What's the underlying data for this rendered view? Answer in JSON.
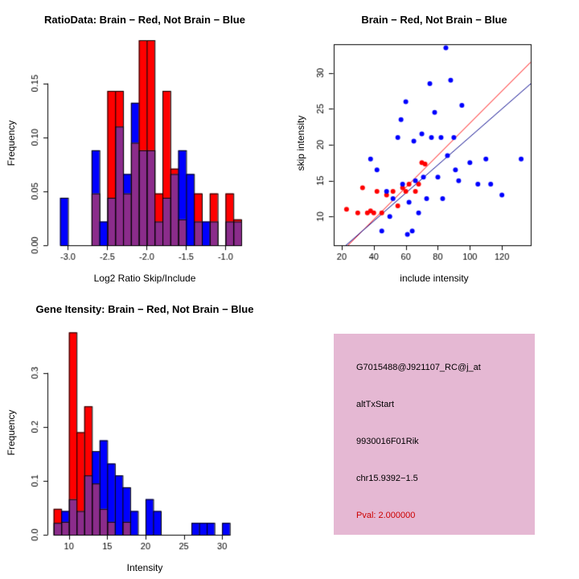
{
  "colors": {
    "red": "#FF0000",
    "blue": "#0000FF",
    "overlap": "#8B2C8B",
    "red_line": "#FF0000",
    "blue_line": "#00008B",
    "axis": "#000000"
  },
  "chart_data": [
    {
      "id": "ratio_histogram",
      "type": "bar",
      "title": "RatioData: Brain − Red, Not Brain − Blue",
      "xlabel": "Log2 Ratio Skip/Include",
      "ylabel": "Frequency",
      "xlim": [
        -3.25,
        -0.8
      ],
      "ylim": [
        0,
        0.19
      ],
      "grid": false,
      "xticks": {
        "values": [
          -3.0,
          -2.5,
          -2.0,
          -1.5,
          -1.0
        ],
        "labels": [
          "-3.0",
          "-2.5",
          "-2.0",
          "-1.5",
          "-1.0"
        ]
      },
      "yticks": {
        "values": [
          0,
          0.05,
          0.1,
          0.15
        ],
        "labels": [
          "0.00",
          "0.05",
          "0.10",
          "0.15"
        ]
      },
      "bin_width": 0.1,
      "legend": {
        "red": "Brain",
        "blue": "Not Brain"
      },
      "bins": [
        {
          "x": -3.1,
          "red": 0,
          "blue": 0.044
        },
        {
          "x": -2.7,
          "red": 0.048,
          "blue": 0.088
        },
        {
          "x": -2.6,
          "red": 0,
          "blue": 0.022
        },
        {
          "x": -2.5,
          "red": 0.143,
          "blue": 0.044
        },
        {
          "x": -2.4,
          "red": 0.143,
          "blue": 0.11
        },
        {
          "x": -2.3,
          "red": 0.048,
          "blue": 0.066
        },
        {
          "x": -2.2,
          "red": 0.095,
          "blue": 0.132
        },
        {
          "x": -2.1,
          "red": 0.19,
          "blue": 0.088
        },
        {
          "x": -2.0,
          "red": 0.19,
          "blue": 0.088
        },
        {
          "x": -1.9,
          "red": 0.048,
          "blue": 0.022
        },
        {
          "x": -1.8,
          "red": 0.143,
          "blue": 0.044
        },
        {
          "x": -1.7,
          "red": 0.071,
          "blue": 0.066
        },
        {
          "x": -1.6,
          "red": 0.024,
          "blue": 0.088
        },
        {
          "x": -1.5,
          "red": 0,
          "blue": 0.066
        },
        {
          "x": -1.4,
          "red": 0.048,
          "blue": 0.022
        },
        {
          "x": -1.3,
          "red": 0,
          "blue": 0.022
        },
        {
          "x": -1.2,
          "red": 0.048,
          "blue": 0.022
        },
        {
          "x": -1.0,
          "red": 0.048,
          "blue": 0.022
        },
        {
          "x": -0.9,
          "red": 0.024,
          "blue": 0.022
        }
      ]
    },
    {
      "id": "intensity_scatter",
      "type": "scatter",
      "title": "Brain − Red, Not Brain − Blue",
      "xlabel": "include intensity",
      "ylabel": "skip intensity",
      "xlim": [
        15,
        138
      ],
      "ylim": [
        6,
        34
      ],
      "grid": false,
      "xticks": {
        "values": [
          20,
          40,
          60,
          80,
          100,
          120
        ],
        "labels": [
          "20",
          "40",
          "60",
          "80",
          "100",
          "120"
        ]
      },
      "yticks": {
        "values": [
          10,
          15,
          20,
          25,
          30
        ],
        "labels": [
          "10",
          "15",
          "20",
          "25",
          "30"
        ]
      },
      "series": [
        {
          "name": "Brain",
          "color_key": "red",
          "points": [
            [
              23,
              11
            ],
            [
              30,
              10.5
            ],
            [
              33,
              14
            ],
            [
              36,
              10.5
            ],
            [
              38,
              10.8
            ],
            [
              40,
              10.5
            ],
            [
              42,
              13.5
            ],
            [
              45,
              10.5
            ],
            [
              48,
              13
            ],
            [
              52,
              13.5
            ],
            [
              55,
              11.5
            ],
            [
              58,
              14
            ],
            [
              60,
              13.5
            ],
            [
              62,
              14.5
            ],
            [
              66,
              13.5
            ],
            [
              68,
              14.5
            ],
            [
              70,
              17.5
            ],
            [
              72,
              17.3
            ]
          ]
        },
        {
          "name": "Not Brain",
          "color_key": "blue",
          "points": [
            [
              38,
              18
            ],
            [
              42,
              16.5
            ],
            [
              45,
              8
            ],
            [
              48,
              13.5
            ],
            [
              50,
              10
            ],
            [
              52,
              12.5
            ],
            [
              55,
              21
            ],
            [
              57,
              23.5
            ],
            [
              58,
              14.5
            ],
            [
              60,
              26
            ],
            [
              61,
              7.5
            ],
            [
              62,
              12
            ],
            [
              64,
              8
            ],
            [
              65,
              20.5
            ],
            [
              66,
              15
            ],
            [
              68,
              10.5
            ],
            [
              70,
              21.5
            ],
            [
              71,
              15.5
            ],
            [
              73,
              12.5
            ],
            [
              75,
              28.5
            ],
            [
              76,
              21
            ],
            [
              78,
              24.5
            ],
            [
              80,
              15.5
            ],
            [
              82,
              21
            ],
            [
              83,
              12.5
            ],
            [
              85,
              33.5
            ],
            [
              86,
              18.5
            ],
            [
              88,
              29
            ],
            [
              90,
              21
            ],
            [
              91,
              16.5
            ],
            [
              93,
              15
            ],
            [
              95,
              25.5
            ],
            [
              100,
              17.5
            ],
            [
              105,
              14.5
            ],
            [
              110,
              18
            ],
            [
              113,
              14.5
            ],
            [
              120,
              13
            ],
            [
              132,
              18
            ]
          ]
        }
      ],
      "lines": [
        {
          "name": "brain-fit-line",
          "color_key": "red",
          "x": [
            15,
            138
          ],
          "y": [
            4.0,
            31.5
          ]
        },
        {
          "name": "notbrain-fit-line",
          "color_key": "blue",
          "x": [
            15,
            138
          ],
          "y": [
            4.5,
            28.5
          ]
        }
      ]
    },
    {
      "id": "gene_intensity_histogram",
      "type": "bar",
      "title": "Gene Itensity: Brain − Red, Not Brain − Blue",
      "xlabel": "Intensity",
      "ylabel": "Frequency",
      "xlim": [
        7.3,
        32.5
      ],
      "ylim": [
        0,
        0.38
      ],
      "grid": false,
      "xticks": {
        "values": [
          10,
          15,
          20,
          25,
          30
        ],
        "labels": [
          "10",
          "15",
          "20",
          "25",
          "30"
        ]
      },
      "yticks": {
        "values": [
          0,
          0.1,
          0.2,
          0.3
        ],
        "labels": [
          "0.0",
          "0.1",
          "0.2",
          "0.3"
        ]
      },
      "bin_width": 1,
      "legend": {
        "red": "Brain",
        "blue": "Not Brain"
      },
      "bins": [
        {
          "x": 8,
          "red": 0.048,
          "blue": 0.022
        },
        {
          "x": 9,
          "red": 0.024,
          "blue": 0.044
        },
        {
          "x": 10,
          "red": 0.375,
          "blue": 0.066
        },
        {
          "x": 11,
          "red": 0.19,
          "blue": 0.044
        },
        {
          "x": 12,
          "red": 0.238,
          "blue": 0.11
        },
        {
          "x": 13,
          "red": 0.095,
          "blue": 0.155
        },
        {
          "x": 14,
          "red": 0.048,
          "blue": 0.175
        },
        {
          "x": 15,
          "red": 0.024,
          "blue": 0.132
        },
        {
          "x": 16,
          "red": 0,
          "blue": 0.11
        },
        {
          "x": 17,
          "red": 0.024,
          "blue": 0.088
        },
        {
          "x": 18,
          "red": 0,
          "blue": 0.044
        },
        {
          "x": 20,
          "red": 0,
          "blue": 0.066
        },
        {
          "x": 21,
          "red": 0,
          "blue": 0.044
        },
        {
          "x": 26,
          "red": 0,
          "blue": 0.022
        },
        {
          "x": 27,
          "red": 0,
          "blue": 0.022
        },
        {
          "x": 28,
          "red": 0,
          "blue": 0.022
        },
        {
          "x": 30,
          "red": 0,
          "blue": 0.022
        }
      ]
    }
  ],
  "info_panel": {
    "background": "#E5B8D3",
    "lines": [
      {
        "text": "G7015488@J921107_RC@j_at",
        "color": "#000000"
      },
      {
        "text": "altTxStart",
        "color": "#000000"
      },
      {
        "text": "9930016F01Rik",
        "color": "#000000"
      },
      {
        "text": "chr15.9392−1.5",
        "color": "#000000"
      },
      {
        "text": "Pval: 2.000000",
        "color": "#CC0000"
      }
    ]
  }
}
